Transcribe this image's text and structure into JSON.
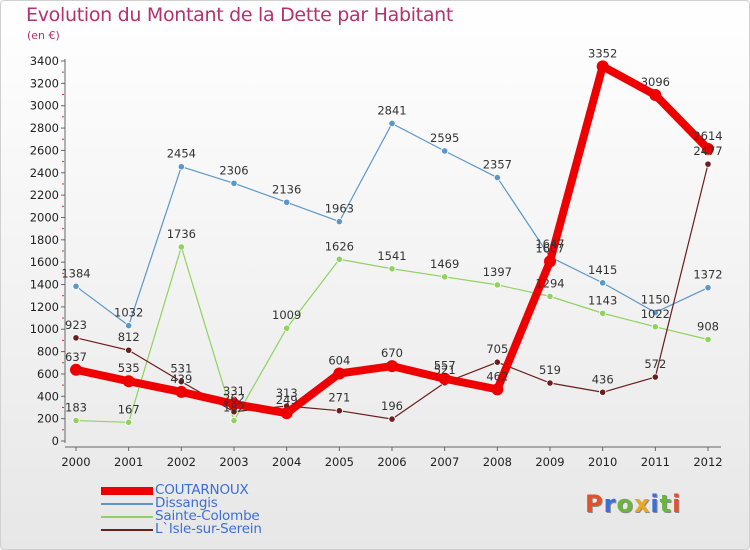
{
  "title": "Evolution du Montant de la Dette par Habitant",
  "subtitle": "(en €)",
  "logo": {
    "text": "Proxiti",
    "letter_colors": [
      "#e3502e",
      "#3b6fd6",
      "#6ab63b",
      "#e8a722",
      "#3b6fd6",
      "#6ab63b",
      "#e3502e"
    ]
  },
  "chart_data": {
    "type": "line",
    "categories": [
      "2000",
      "2001",
      "2002",
      "2003",
      "2004",
      "2005",
      "2006",
      "2007",
      "2008",
      "2009",
      "2010",
      "2011",
      "2012"
    ],
    "ylim": [
      0,
      3400
    ],
    "yticks": [
      0,
      200,
      400,
      600,
      800,
      1000,
      1200,
      1400,
      1600,
      1800,
      2000,
      2200,
      2400,
      2600,
      2800,
      3000,
      3200,
      3400
    ],
    "grid": false,
    "legend_position": "bottom-left",
    "series": [
      {
        "name": "Dissangis",
        "color": "#5b97c9",
        "values": [
          1384,
          1032,
          2454,
          2306,
          2136,
          1963,
          2841,
          2595,
          2357,
          1647,
          1415,
          1150,
          1372
        ]
      },
      {
        "name": "Sainte-Colombe",
        "color": "#8fd35e",
        "values": [
          183,
          167,
          1736,
          182,
          1009,
          1626,
          1541,
          1469,
          1397,
          1294,
          1143,
          1022,
          908
        ]
      },
      {
        "name": "L`Isle-sur-Serein",
        "color": "#6b1e1e",
        "values": [
          923,
          812,
          531,
          262,
          313,
          271,
          196,
          521,
          705,
          519,
          436,
          572,
          2477
        ]
      },
      {
        "name": "COUTARNOUX",
        "color": "#ee0000",
        "values": [
          637,
          535,
          439,
          331,
          249,
          604,
          670,
          557,
          462,
          1607,
          3352,
          3096,
          2614
        ]
      }
    ],
    "data_labels": [
      [
        "1384",
        "1032",
        "2454",
        "2306",
        "2136",
        "1963",
        "2841",
        "2595",
        "2357",
        "1647",
        "1415",
        "1150",
        "1372"
      ],
      [
        "183",
        "167",
        "1736",
        "182",
        "1009",
        "1626",
        "1541",
        "1469",
        "1397",
        "1294",
        "1143",
        "1022",
        "908"
      ],
      [
        "923",
        "812",
        "531",
        "262",
        "313",
        "271",
        "196",
        "521",
        "705",
        "519",
        "436",
        "572",
        "2477"
      ],
      [
        "637",
        "535",
        "439",
        "331",
        "249",
        "604",
        "670",
        "557",
        "462",
        "1607",
        "3352",
        "3096",
        "2614"
      ]
    ],
    "legend_order": [
      "COUTARNOUX",
      "Dissangis",
      "Sainte-Colombe",
      "L`Isle-sur-Serein"
    ]
  }
}
